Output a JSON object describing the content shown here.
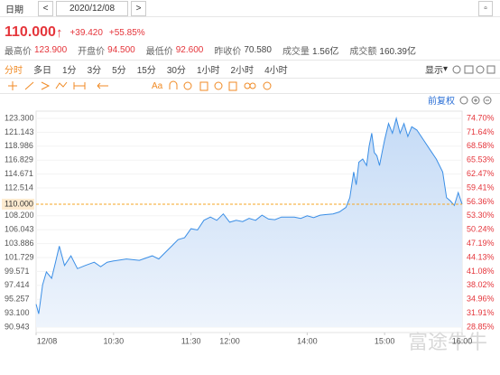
{
  "header": {
    "date_label": "日期",
    "date": "2020/12/08",
    "price": "110.000",
    "change": "+39.420",
    "change_pct": "+55.85%",
    "stats": [
      {
        "label": "最高价",
        "value": "123.900"
      },
      {
        "label": "开盘价",
        "value": "94.500"
      },
      {
        "label": "最低价",
        "value": "92.600"
      },
      {
        "label": "昨收价",
        "value": "70.580"
      },
      {
        "label": "成交量",
        "value": "1.56亿"
      },
      {
        "label": "成交额",
        "value": "160.39亿"
      }
    ],
    "tabs": [
      "分时",
      "多日",
      "1分",
      "3分",
      "5分",
      "15分",
      "30分",
      "1小时",
      "2小时",
      "4小时"
    ],
    "display": "显示",
    "toolbar_text": "Aa",
    "adjust": "前复权",
    "watermark": "富途牛牛"
  },
  "chart_data": {
    "type": "line",
    "ref_line": 110,
    "x": [
      0,
      2,
      5,
      8,
      12,
      15,
      18,
      22,
      27,
      32,
      38,
      45,
      50,
      55,
      60,
      70,
      80,
      90,
      95,
      100,
      105,
      110,
      115,
      120,
      125,
      130,
      135,
      140,
      145,
      150,
      155,
      160,
      165,
      170,
      175,
      180,
      185,
      190,
      200,
      205,
      210,
      215,
      220,
      225,
      230,
      235,
      240,
      243,
      246,
      248,
      250,
      253,
      256,
      258,
      260,
      262,
      264,
      266,
      268,
      270,
      273,
      276,
      279,
      282,
      285,
      288,
      291,
      295,
      300,
      305,
      310,
      315,
      318,
      321,
      324,
      327,
      330
    ],
    "values": [
      94.5,
      93.0,
      97.5,
      99.5,
      98.5,
      101,
      103.5,
      100.5,
      102,
      100,
      100.5,
      101,
      100.3,
      101,
      101.2,
      101.5,
      101.3,
      102,
      101.5,
      102.5,
      103.5,
      104.5,
      104.8,
      106.2,
      106,
      107.5,
      108,
      107.5,
      108.5,
      107.2,
      107.5,
      107.3,
      107.8,
      107.5,
      108.3,
      107.7,
      107.6,
      108,
      108,
      107.8,
      108.2,
      107.9,
      108.3,
      108.4,
      108.5,
      108.8,
      109.5,
      111,
      115,
      113,
      116.5,
      117,
      116,
      119,
      121,
      118,
      117.5,
      116,
      118,
      120,
      122.5,
      121,
      123.3,
      121,
      122.5,
      120.5,
      122,
      121.5,
      120,
      118.5,
      117,
      115,
      111,
      110.5,
      109.8,
      111.8,
      110
    ],
    "color": "#3a8ee6",
    "ref_color": "#f5a623",
    "xlim": [
      0,
      330
    ],
    "xticks": [
      {
        "value": 0,
        "label": "12/08"
      },
      {
        "value": 60,
        "label": "10:30"
      },
      {
        "value": 120,
        "label": "11:30"
      },
      {
        "value": 150,
        "label": "12:00"
      },
      {
        "value": 210,
        "label": "14:00"
      },
      {
        "value": 270,
        "label": "15:00"
      },
      {
        "value": 330,
        "label": "16:00"
      }
    ],
    "ylim": [
      90.943,
      123.3
    ],
    "yticks": [
      {
        "value": 123.3,
        "label": "123.300"
      },
      {
        "value": 121.143,
        "label": "121.143"
      },
      {
        "value": 118.986,
        "label": "118.986"
      },
      {
        "value": 116.829,
        "label": "116.829"
      },
      {
        "value": 114.671,
        "label": "114.671"
      },
      {
        "value": 112.514,
        "label": "112.514"
      },
      {
        "value": 108.2,
        "label": "108.200"
      },
      {
        "value": 106.043,
        "label": "106.043"
      },
      {
        "value": 103.886,
        "label": "103.886"
      },
      {
        "value": 101.729,
        "label": "101.729"
      },
      {
        "value": 99.571,
        "label": "99.571"
      },
      {
        "value": 97.414,
        "label": "97.414"
      },
      {
        "value": 95.257,
        "label": "95.257"
      },
      {
        "value": 93.1,
        "label": "93.100"
      },
      {
        "value": 90.943,
        "label": "90.943"
      }
    ],
    "y2lim": [
      28.85,
      74.7
    ],
    "y2ticks": [
      {
        "value": 74.7,
        "label": "74.70%"
      },
      {
        "value": 71.64,
        "label": "71.64%"
      },
      {
        "value": 68.58,
        "label": "68.58%"
      },
      {
        "value": 65.53,
        "label": "65.53%"
      },
      {
        "value": 62.47,
        "label": "62.47%"
      },
      {
        "value": 59.41,
        "label": "59.41%"
      },
      {
        "value": 56.36,
        "label": "56.36%"
      },
      {
        "value": 53.3,
        "label": "53.30%"
      },
      {
        "value": 50.24,
        "label": "50.24%"
      },
      {
        "value": 47.19,
        "label": "47.19%"
      },
      {
        "value": 44.13,
        "label": "44.13%"
      },
      {
        "value": 41.08,
        "label": "41.08%"
      },
      {
        "value": 38.02,
        "label": "38.02%"
      },
      {
        "value": 34.96,
        "label": "34.96%"
      },
      {
        "value": 31.91,
        "label": "31.91%"
      },
      {
        "value": 28.85,
        "label": "28.85%"
      }
    ]
  }
}
